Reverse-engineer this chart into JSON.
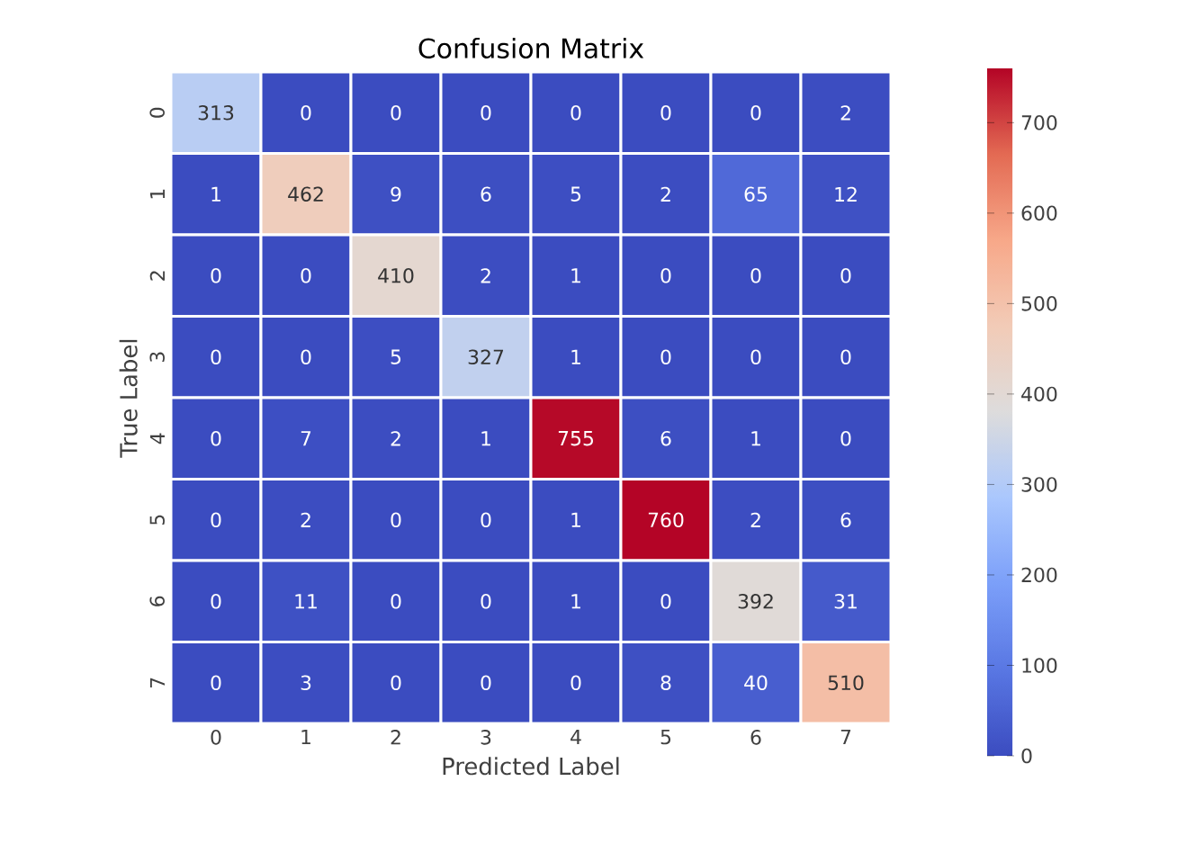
{
  "chart_data": {
    "type": "heatmap",
    "title": "Confusion Matrix",
    "xlabel": "Predicted Label",
    "ylabel": "True Label",
    "categories": [
      "0",
      "1",
      "2",
      "3",
      "4",
      "5",
      "6",
      "7"
    ],
    "y_categories": [
      "0",
      "1",
      "2",
      "3",
      "4",
      "5",
      "6",
      "7"
    ],
    "cells": [
      [
        313,
        0,
        0,
        0,
        0,
        0,
        0,
        2
      ],
      [
        1,
        462,
        9,
        6,
        5,
        2,
        65,
        12
      ],
      [
        0,
        0,
        410,
        2,
        1,
        0,
        0,
        0
      ],
      [
        0,
        0,
        5,
        327,
        1,
        0,
        0,
        0
      ],
      [
        0,
        7,
        2,
        1,
        755,
        6,
        1,
        0
      ],
      [
        0,
        2,
        0,
        0,
        1,
        760,
        2,
        6
      ],
      [
        0,
        11,
        0,
        0,
        1,
        0,
        392,
        31
      ],
      [
        0,
        3,
        0,
        0,
        0,
        8,
        40,
        510
      ]
    ],
    "data_labels": true,
    "clim": [
      0,
      760
    ],
    "cticks": [
      0,
      100,
      200,
      300,
      400,
      500,
      600,
      700
    ]
  }
}
